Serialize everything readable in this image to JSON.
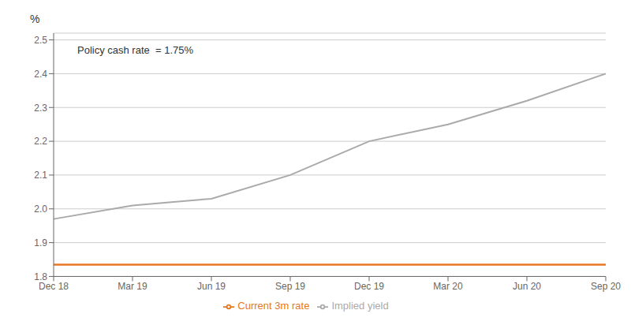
{
  "chart_data": {
    "type": "line",
    "ylabel": "%",
    "annotation": "Policy cash rate  = 1.75%",
    "categories": [
      "Dec 18",
      "Mar 19",
      "Jun 19",
      "Sep 19",
      "Dec 19",
      "Mar 20",
      "Jun 20",
      "Sep 20"
    ],
    "series": [
      {
        "name": "Implied yield",
        "color": "#aaaaaa",
        "values": [
          1.97,
          2.01,
          2.03,
          2.1,
          2.2,
          2.25,
          2.32,
          2.4
        ]
      },
      {
        "name": "Current 3m rate",
        "color": "#e87722",
        "values": [
          1.835,
          1.835,
          1.835,
          1.835,
          1.835,
          1.835,
          1.835,
          1.835
        ]
      }
    ],
    "ylim": [
      1.8,
      2.52
    ],
    "yticks": [
      1.8,
      1.9,
      {
        "value": 2.0,
        "label": "2.0"
      },
      2.1,
      2.2,
      2.3,
      2.4,
      2.5
    ],
    "grid": true,
    "legend": "bottom"
  }
}
